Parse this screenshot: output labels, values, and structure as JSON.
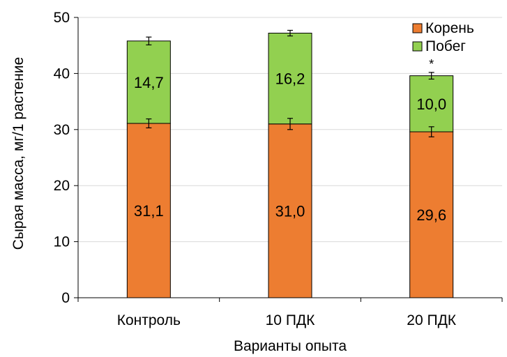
{
  "chart_data": {
    "type": "bar",
    "stacked": true,
    "categories": [
      "Контроль",
      "10 ПДК",
      "20 ПДК"
    ],
    "series": [
      {
        "name": "Корень",
        "color": "#ED7D31",
        "values": [
          31.1,
          31.0,
          29.6
        ],
        "labels": [
          "31,1",
          "31,0",
          "29,6"
        ],
        "errors": [
          0.8,
          1.0,
          0.9
        ]
      },
      {
        "name": "Побег",
        "color": "#92D050",
        "values": [
          14.7,
          16.2,
          10.0
        ],
        "labels": [
          "14,7",
          "16,2",
          "10,0"
        ],
        "errors": [
          0.7,
          0.5,
          0.6
        ]
      }
    ],
    "annotations": [
      {
        "category": "20 ПДК",
        "text": "*"
      }
    ],
    "xlabel": "Варианты опыта",
    "ylabel": "Сырая масса, мг/1 растение",
    "ylim": [
      0,
      50
    ],
    "yticks": [
      0,
      10,
      20,
      30,
      40,
      50
    ],
    "grid": true,
    "legend_position": "top-right"
  }
}
